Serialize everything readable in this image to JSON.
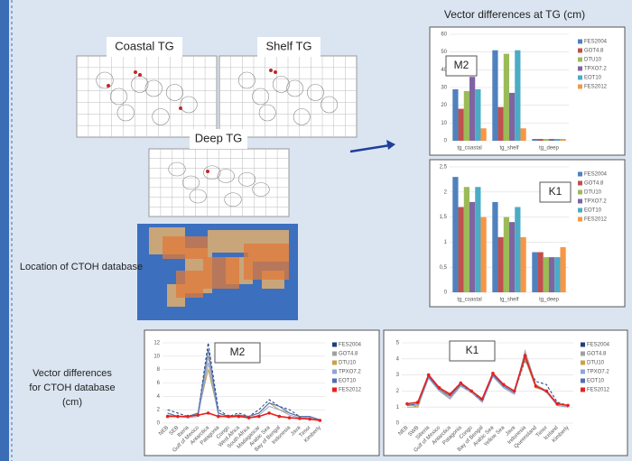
{
  "labels": {
    "coastal": "Coastal TG",
    "shelf": "Shelf TG",
    "deep": "Deep TG",
    "location": "Location of CTOH database",
    "tg_title": "Vector differences at TG (cm)",
    "ctoh_title": "Vector differences for CTOH database (cm)"
  },
  "chart_data": [
    {
      "type": "bar",
      "label": "M2",
      "categories": [
        "tg_coastal",
        "tg_shelf",
        "tg_deep"
      ],
      "ylim": [
        0,
        60
      ],
      "yticks": [
        0,
        10,
        20,
        30,
        40,
        50,
        60
      ],
      "series": [
        {
          "name": "FES2004",
          "color": "#4f81bd",
          "values": [
            29,
            51,
            1
          ]
        },
        {
          "name": "GOT4.8",
          "color": "#c0504d",
          "values": [
            18,
            19,
            1
          ]
        },
        {
          "name": "DTU10",
          "color": "#9bbb59",
          "values": [
            28,
            49,
            1
          ]
        },
        {
          "name": "TPXO7.2",
          "color": "#8064a2",
          "values": [
            36,
            27,
            1
          ]
        },
        {
          "name": "EOT10",
          "color": "#4bacc6",
          "values": [
            29,
            51,
            1
          ]
        },
        {
          "name": "FES2012",
          "color": "#f79646",
          "values": [
            7,
            7,
            1
          ]
        }
      ]
    },
    {
      "type": "bar",
      "label": "K1",
      "categories": [
        "tg_coastal",
        "tg_shelf",
        "tg_deep"
      ],
      "ylim": [
        0,
        2.5
      ],
      "yticks": [
        0,
        {
          "value": 0.5,
          "label": "0,5"
        },
        1,
        {
          "value": 1.5,
          "label": "1,5"
        },
        2,
        {
          "value": 2.5,
          "label": "2,5"
        }
      ],
      "series": [
        {
          "name": "FES2004",
          "color": "#4f81bd",
          "values": [
            2.3,
            1.8,
            0.8
          ]
        },
        {
          "name": "GOT4.8",
          "color": "#c0504d",
          "values": [
            1.7,
            1.1,
            0.8
          ]
        },
        {
          "name": "DTU10",
          "color": "#9bbb59",
          "values": [
            2.1,
            1.5,
            0.7
          ]
        },
        {
          "name": "TPXO7.2",
          "color": "#8064a2",
          "values": [
            1.8,
            1.4,
            0.7
          ]
        },
        {
          "name": "EOT10",
          "color": "#4bacc6",
          "values": [
            2.1,
            1.7,
            0.7
          ]
        },
        {
          "name": "FES2012",
          "color": "#f79646",
          "values": [
            1.5,
            1.1,
            0.9
          ]
        }
      ]
    },
    {
      "type": "line",
      "label": "M2",
      "categories": [
        "NEB",
        "SEB",
        "Iberia",
        "Gulf of Mexico",
        "Antarctica",
        "Patagonia",
        "Congo",
        "West Africa",
        "South Africa",
        "Madagascar",
        "Arabic Sea",
        "Bay of Bengal",
        "Indonesia",
        "Java",
        "Timor",
        "Kimberly"
      ],
      "ylim": [
        0,
        12
      ],
      "yticks": [
        0,
        2,
        4,
        6,
        8,
        10,
        12
      ],
      "series": [
        {
          "name": "FES2004",
          "color": "#1f3f7a",
          "values": [
            2,
            1.5,
            1,
            1.5,
            12,
            2,
            1,
            1.5,
            1,
            2,
            3.5,
            2.5,
            2,
            1,
            1,
            0.5
          ]
        },
        {
          "name": "GOT4.8",
          "color": "#a0a0a0",
          "values": [
            1.5,
            1,
            1,
            1.2,
            10,
            1.5,
            1,
            1,
            1,
            1.5,
            3,
            2.5,
            1.5,
            1,
            1,
            0.5
          ]
        },
        {
          "name": "DTU10",
          "color": "#c9a24a",
          "values": [
            1.5,
            1,
            1,
            1.5,
            8,
            1.5,
            1,
            1.2,
            1,
            1.5,
            3,
            2,
            1.5,
            1,
            0.8,
            0.5
          ]
        },
        {
          "name": "TPXO7.2",
          "color": "#8fa6d6",
          "values": [
            1.2,
            1,
            0.8,
            1,
            9,
            1.2,
            0.8,
            1,
            0.8,
            1.2,
            2.5,
            2,
            1.2,
            0.8,
            0.8,
            0.4
          ]
        },
        {
          "name": "EOT10",
          "color": "#4f6fb0",
          "values": [
            1.5,
            1,
            1,
            1.5,
            11,
            1.5,
            1,
            1.2,
            1,
            1.5,
            3,
            2.5,
            1.5,
            1,
            1,
            0.5
          ]
        },
        {
          "name": "FES2012",
          "color": "#e8201c",
          "values": [
            1,
            1,
            1,
            1.2,
            1.5,
            1,
            1,
            1,
            0.8,
            1,
            1.5,
            1,
            0.8,
            0.7,
            0.6,
            0.4
          ]
        }
      ]
    },
    {
      "type": "line",
      "label": "K1",
      "categories": [
        "NEB",
        "SWB",
        "Siberia",
        "Gulf of Mexico",
        "Antarctica",
        "Patagonia",
        "Congo",
        "Bay of Bengal",
        "Arabic Sea",
        "Yellow Sea",
        "Java",
        "Indonesia",
        "Queensland",
        "Timor",
        "Iceland",
        "Kimberly"
      ],
      "ylim": [
        0,
        5
      ],
      "yticks": [
        0,
        1,
        2,
        3,
        4,
        5
      ],
      "series": [
        {
          "name": "FES2004",
          "color": "#1f3f7a",
          "values": [
            1.1,
            1.2,
            2.9,
            2.1,
            1.7,
            2.4,
            1.9,
            1.4,
            3,
            2.3,
            1.9,
            3.9,
            2.6,
            2.4,
            1.3,
            1.1
          ]
        },
        {
          "name": "GOT4.8",
          "color": "#a0a0a0",
          "values": [
            1,
            1,
            2.8,
            2,
            1.5,
            2.3,
            1.9,
            1.3,
            2.9,
            2.2,
            1.8,
            4.5,
            2.4,
            2,
            1.1,
            1
          ]
        },
        {
          "name": "DTU10",
          "color": "#c9a24a",
          "values": [
            1.2,
            1,
            2.9,
            2.1,
            1.6,
            2.4,
            2,
            1.4,
            3,
            2.3,
            1.9,
            4,
            2.2,
            2,
            1.1,
            1
          ]
        },
        {
          "name": "TPXO7.2",
          "color": "#8fa6d6",
          "values": [
            1.1,
            1.1,
            2.8,
            2,
            1.6,
            2.3,
            1.9,
            1.3,
            2.9,
            2.2,
            1.8,
            4.3,
            2.3,
            1.9,
            1.1,
            1
          ]
        },
        {
          "name": "EOT10",
          "color": "#4f6fb0",
          "values": [
            1.1,
            1.2,
            2.9,
            2.1,
            1.7,
            2.4,
            2,
            1.4,
            3,
            2.3,
            1.9,
            4.1,
            2.3,
            2,
            1.2,
            1.1
          ]
        },
        {
          "name": "FES2012",
          "color": "#e8201c",
          "values": [
            1.2,
            1.3,
            3,
            2.2,
            1.8,
            2.5,
            2,
            1.5,
            3.1,
            2.4,
            2,
            4.2,
            2.3,
            2,
            1.2,
            1.1
          ]
        }
      ]
    }
  ]
}
